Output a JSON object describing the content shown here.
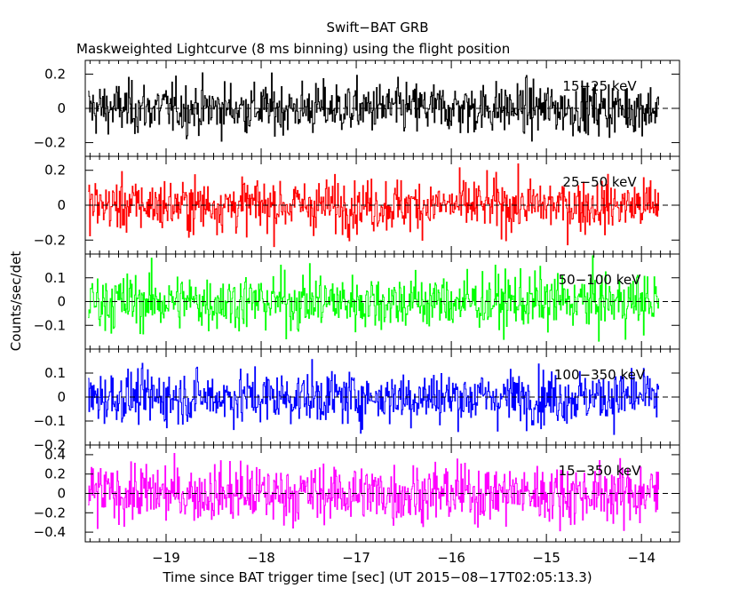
{
  "title": "Swift−BAT GRB",
  "subtitle": "Maskweighted Lightcurve (8 ms binning) using the flight position",
  "ylabel": "Counts/sec/det",
  "xlabel": "Time since BAT trigger time [sec] (UT 2015−08−17T02:05:13.3)",
  "chart_data": {
    "type": "line",
    "xlim": [
      -19.85,
      -13.6
    ],
    "data_range": [
      -19.82,
      -13.82
    ],
    "bin_sec": 0.008,
    "x_ticks": [
      -19,
      -18,
      -17,
      -16,
      -15,
      -14
    ],
    "x_tick_labels": [
      "−19",
      "−18",
      "−17",
      "−16",
      "−15",
      "−14"
    ],
    "panels": [
      {
        "name": "15−25 keV",
        "color": "#000000",
        "ylim": [
          -0.28,
          0.28
        ],
        "yticks": [
          -0.2,
          0,
          0.2
        ],
        "ytick_labels": [
          "−0.2",
          "0",
          "0.2"
        ],
        "amplitude": 0.075
      },
      {
        "name": "25−50 keV",
        "color": "#ff0000",
        "ylim": [
          -0.28,
          0.28
        ],
        "yticks": [
          -0.2,
          0,
          0.2
        ],
        "ytick_labels": [
          "−0.2",
          "0",
          "0.2"
        ],
        "amplitude": 0.075
      },
      {
        "name": "50−100 keV",
        "color": "#00ff00",
        "ylim": [
          -0.2,
          0.2
        ],
        "yticks": [
          -0.1,
          0,
          0.1
        ],
        "ytick_labels": [
          "−0.1",
          "0",
          "0.1"
        ],
        "amplitude": 0.06
      },
      {
        "name": "100−350 keV",
        "color": "#0000ff",
        "ylim": [
          -0.2,
          0.2
        ],
        "yticks": [
          -0.2,
          -0.1,
          0,
          0.1
        ],
        "ytick_labels": [
          "−0.2",
          "−0.1",
          "0",
          "0.1"
        ],
        "amplitude": 0.055
      },
      {
        "name": "15−350 keV",
        "color": "#ff00ff",
        "ylim": [
          -0.5,
          0.5
        ],
        "yticks": [
          -0.4,
          -0.2,
          0,
          0.2,
          0.4
        ],
        "ytick_labels": [
          "−0.4",
          "−0.2",
          "0",
          "0.2",
          "0.4"
        ],
        "amplitude": 0.15
      }
    ]
  }
}
